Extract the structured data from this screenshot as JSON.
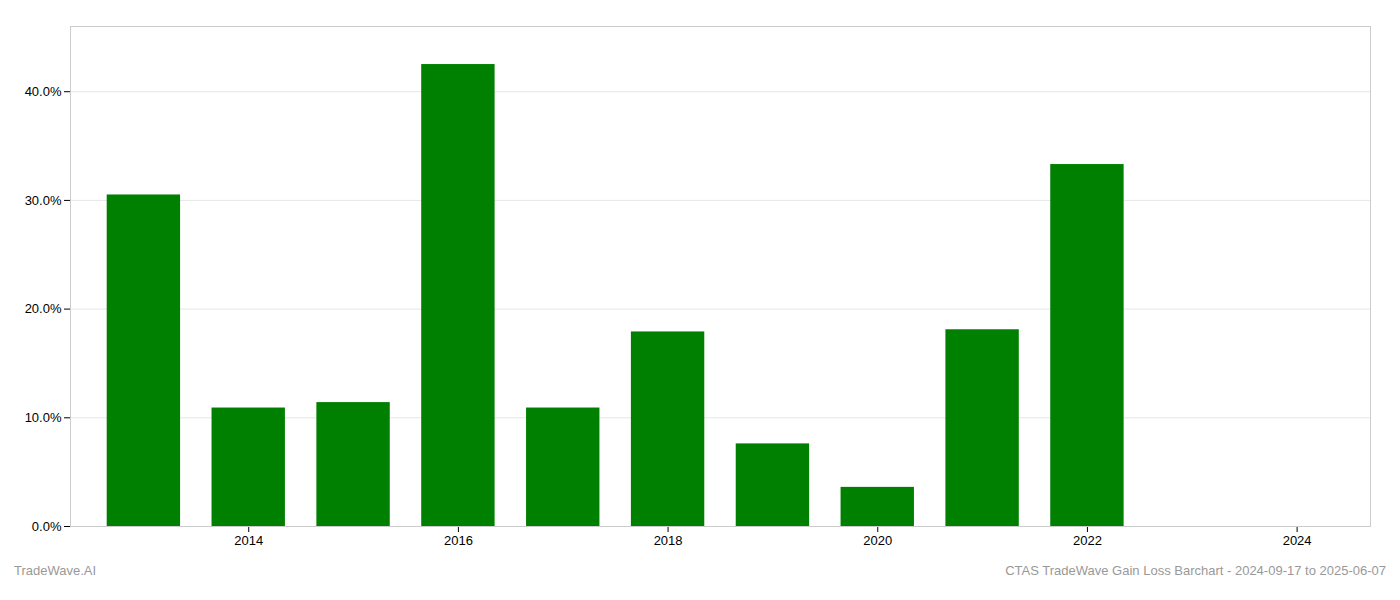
{
  "chart_data": {
    "type": "bar",
    "x": [
      2013,
      2014,
      2015,
      2016,
      2017,
      2018,
      2019,
      2020,
      2021,
      2022
    ],
    "values": [
      0.305,
      0.109,
      0.114,
      0.425,
      0.109,
      0.179,
      0.076,
      0.036,
      0.181,
      0.333
    ],
    "color": "#008000",
    "xlim": [
      2012.3,
      2024.7
    ],
    "xticks": [
      2014,
      2016,
      2018,
      2020,
      2022,
      2024
    ],
    "ylim": [
      0,
      0.46
    ],
    "yticks": [
      {
        "value": 0.0,
        "label": "0.0%"
      },
      {
        "value": 0.1,
        "label": "10.0%"
      },
      {
        "value": 0.2,
        "label": "20.0%"
      },
      {
        "value": 0.3,
        "label": "30.0%"
      },
      {
        "value": 0.4,
        "label": "40.0%"
      }
    ],
    "grid": true,
    "annotations": [
      "TradeWave.AI",
      "CTAS TradeWave Gain Loss Barchart - 2024-09-17 to 2025-06-07"
    ]
  }
}
